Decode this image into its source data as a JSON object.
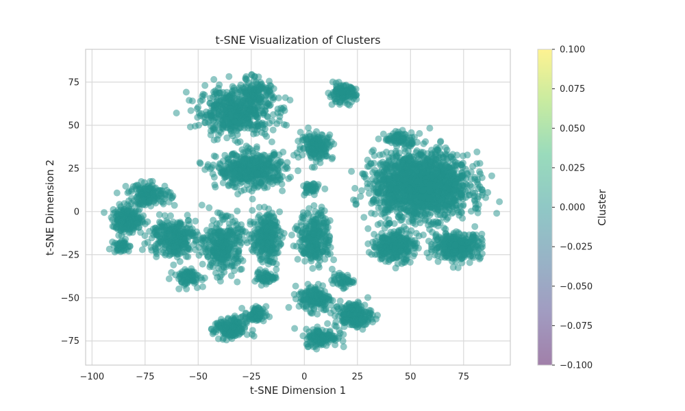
{
  "chart_data": {
    "type": "scatter",
    "title": "t-SNE Visualization of Clusters",
    "xlabel": "t-SNE Dimension 1",
    "ylabel": "t-SNE Dimension 2",
    "xlim": [
      -103,
      97
    ],
    "ylim": [
      -89,
      94
    ],
    "xticks": [
      -100,
      -75,
      -50,
      -25,
      0,
      25,
      50,
      75
    ],
    "yticks": [
      -75,
      -50,
      -25,
      0,
      25,
      50,
      75
    ],
    "xtick_labels": [
      "−100",
      "−75",
      "−50",
      "−25",
      "0",
      "25",
      "50",
      "75"
    ],
    "ytick_labels": [
      "−75",
      "−50",
      "−25",
      "0",
      "25",
      "50",
      "75"
    ],
    "grid": true,
    "point_color": "#21918c",
    "point_alpha": 0.5,
    "clusters": [
      {
        "cx": -32,
        "cy": 58,
        "sx": 14,
        "sy": 11,
        "n": 520
      },
      {
        "cx": -22,
        "cy": 70,
        "sx": 6,
        "sy": 7,
        "n": 90
      },
      {
        "cx": 18,
        "cy": 68,
        "sx": 5,
        "sy": 4,
        "n": 130
      },
      {
        "cx": 6,
        "cy": 38,
        "sx": 6,
        "sy": 6,
        "n": 170
      },
      {
        "cx": -25,
        "cy": 24,
        "sx": 13,
        "sy": 8,
        "n": 480
      },
      {
        "cx": 3,
        "cy": 13,
        "sx": 3,
        "sy": 3,
        "n": 40
      },
      {
        "cx": -73,
        "cy": 10,
        "sx": 8,
        "sy": 5,
        "n": 150
      },
      {
        "cx": -83,
        "cy": -5,
        "sx": 6,
        "sy": 6,
        "n": 190
      },
      {
        "cx": -86,
        "cy": -20,
        "sx": 3,
        "sy": 3,
        "n": 45
      },
      {
        "cx": -62,
        "cy": -15,
        "sx": 9,
        "sy": 9,
        "n": 290
      },
      {
        "cx": -38,
        "cy": -20,
        "sx": 7,
        "sy": 12,
        "n": 330
      },
      {
        "cx": -55,
        "cy": -38,
        "sx": 5,
        "sy": 4,
        "n": 80
      },
      {
        "cx": -18,
        "cy": -15,
        "sx": 5,
        "sy": 11,
        "n": 260
      },
      {
        "cx": -18,
        "cy": -38,
        "sx": 4,
        "sy": 3,
        "n": 60
      },
      {
        "cx": 5,
        "cy": -15,
        "sx": 6,
        "sy": 12,
        "n": 270
      },
      {
        "cx": -35,
        "cy": -68,
        "sx": 6,
        "sy": 5,
        "n": 170
      },
      {
        "cx": -23,
        "cy": -60,
        "sx": 4,
        "sy": 4,
        "n": 70
      },
      {
        "cx": 5,
        "cy": -50,
        "sx": 6,
        "sy": 6,
        "n": 150
      },
      {
        "cx": 8,
        "cy": -73,
        "sx": 6,
        "sy": 4,
        "n": 140
      },
      {
        "cx": 23,
        "cy": -60,
        "sx": 7,
        "sy": 6,
        "n": 190
      },
      {
        "cx": 18,
        "cy": -40,
        "sx": 4,
        "sy": 3,
        "n": 50
      },
      {
        "cx": 55,
        "cy": 15,
        "sx": 18,
        "sy": 15,
        "n": 1700
      },
      {
        "cx": 42,
        "cy": -20,
        "sx": 8,
        "sy": 7,
        "n": 300
      },
      {
        "cx": 72,
        "cy": -20,
        "sx": 9,
        "sy": 6,
        "n": 330
      },
      {
        "cx": 45,
        "cy": 42,
        "sx": 6,
        "sy": 3,
        "n": 80
      }
    ],
    "colorbar": {
      "label": "Cluster",
      "ticks": [
        "0.100",
        "0.075",
        "0.050",
        "0.025",
        "0.000",
        "−0.025",
        "−0.050",
        "−0.075",
        "−0.100"
      ],
      "colors": [
        "#fde725",
        "#90d743",
        "#35b779",
        "#21918c",
        "#31688e",
        "#443983",
        "#440154"
      ]
    }
  }
}
